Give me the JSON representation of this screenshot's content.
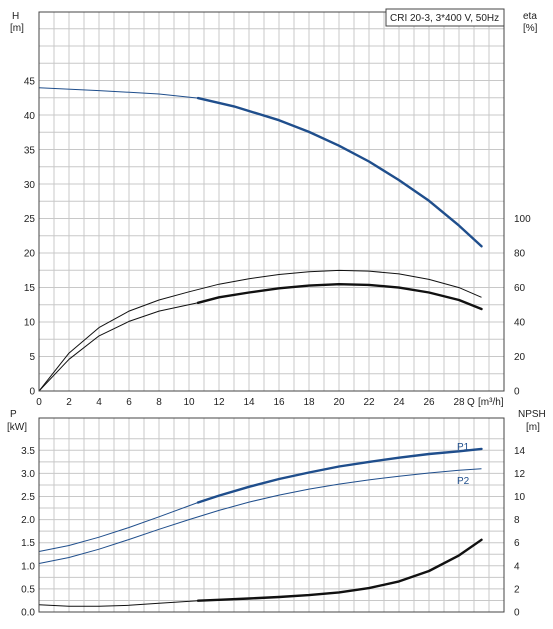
{
  "chart_data": [
    {
      "type": "line",
      "panel": "upper",
      "legend": "CRI 20-3, 3*400 V, 50Hz",
      "legend_placement": "top-right",
      "grid": true,
      "xlabel": "Q",
      "xunit": "[m³/h]",
      "xlim": [
        0,
        31
      ],
      "xticks": [
        "0",
        "2",
        "4",
        "6",
        "8",
        "10",
        "12",
        "14",
        "16",
        "18",
        "20",
        "22",
        "24",
        "26",
        "28"
      ],
      "ylabel_left": "H",
      "yunit_left": "[m]",
      "ylim_left": [
        0,
        55
      ],
      "yticks_left": [
        "0",
        "5",
        "10",
        "15",
        "20",
        "25",
        "30",
        "35",
        "40",
        "45"
      ],
      "ylabel_right": "eta",
      "yunit_right": "[%]",
      "ylim_right": [
        0,
        220
      ],
      "yticks_right": [
        "0",
        "20",
        "40",
        "60",
        "80",
        "100"
      ],
      "series": [
        {
          "axis": "left",
          "color": "#1f4e8c",
          "x": [
            0,
            4,
            8,
            10.6,
            13,
            16,
            18,
            20,
            22,
            24,
            26,
            28,
            29.5
          ],
          "y": [
            44,
            43.6,
            43.1,
            42.5,
            41.3,
            39.3,
            37.6,
            35.6,
            33.3,
            30.6,
            27.6,
            24.0,
            21.0
          ],
          "bold_from": 10.6
        },
        {
          "axis": "left",
          "color": "#111111",
          "x": [
            0,
            2,
            4,
            6,
            8,
            10,
            12,
            14,
            16,
            18,
            20,
            22,
            24,
            26,
            28,
            29.5
          ],
          "y": [
            0,
            5.5,
            9.2,
            11.6,
            13.2,
            14.4,
            15.5,
            16.3,
            16.9,
            17.3,
            17.5,
            17.4,
            17.0,
            16.2,
            15.0,
            13.6
          ],
          "bold_from": 99
        },
        {
          "axis": "left",
          "color": "#111111",
          "x": [
            0,
            2,
            4,
            6,
            8,
            10.6,
            12,
            14,
            16,
            18,
            20,
            22,
            24,
            26,
            28,
            29.5
          ],
          "y": [
            0,
            4.6,
            8.0,
            10.1,
            11.6,
            12.8,
            13.6,
            14.3,
            14.9,
            15.3,
            15.5,
            15.4,
            15.0,
            14.3,
            13.2,
            11.9
          ],
          "bold_from": 10.6
        }
      ]
    },
    {
      "type": "line",
      "panel": "lower",
      "grid": true,
      "xlim": [
        0,
        31
      ],
      "ylabel_left": "P",
      "yunit_left": "[kW]",
      "ylim_left": [
        0,
        4.2
      ],
      "yticks_left": [
        "0.0",
        "0.5",
        "1.0",
        "1.5",
        "2.0",
        "2.5",
        "3.0",
        "3.5"
      ],
      "ylabel_right": "NPSH",
      "yunit_right": "[m]",
      "ylim_right": [
        0,
        16.8
      ],
      "yticks_right": [
        "0",
        "2",
        "4",
        "6",
        "8",
        "10",
        "12",
        "14"
      ],
      "series": [
        {
          "name": "P1",
          "axis": "left",
          "color": "#1f4e8c",
          "x": [
            0,
            2,
            4,
            6,
            8,
            10.6,
            12,
            14,
            16,
            18,
            20,
            22,
            24,
            26,
            28,
            29.5
          ],
          "y": [
            1.31,
            1.44,
            1.62,
            1.83,
            2.06,
            2.37,
            2.52,
            2.71,
            2.88,
            3.02,
            3.15,
            3.25,
            3.34,
            3.42,
            3.48,
            3.53
          ],
          "bold_from": 10.6
        },
        {
          "name": "P2",
          "axis": "left",
          "color": "#1f4e8c",
          "x": [
            0,
            2,
            4,
            6,
            8,
            10,
            12,
            14,
            16,
            18,
            20,
            22,
            24,
            26,
            28,
            29.5
          ],
          "y": [
            1.05,
            1.18,
            1.36,
            1.57,
            1.79,
            2.0,
            2.2,
            2.38,
            2.53,
            2.66,
            2.77,
            2.86,
            2.94,
            3.01,
            3.07,
            3.1
          ],
          "bold_from": 99
        },
        {
          "axis": "right",
          "color": "#111111",
          "x": [
            0,
            2,
            4,
            6,
            8,
            10.6,
            12,
            14,
            16,
            18,
            20,
            22,
            24,
            26,
            28,
            29.5
          ],
          "y": [
            0.62,
            0.5,
            0.5,
            0.58,
            0.75,
            0.98,
            1.06,
            1.17,
            1.3,
            1.46,
            1.7,
            2.07,
            2.65,
            3.55,
            4.9,
            6.25
          ],
          "bold_from": 10.6
        }
      ]
    }
  ]
}
